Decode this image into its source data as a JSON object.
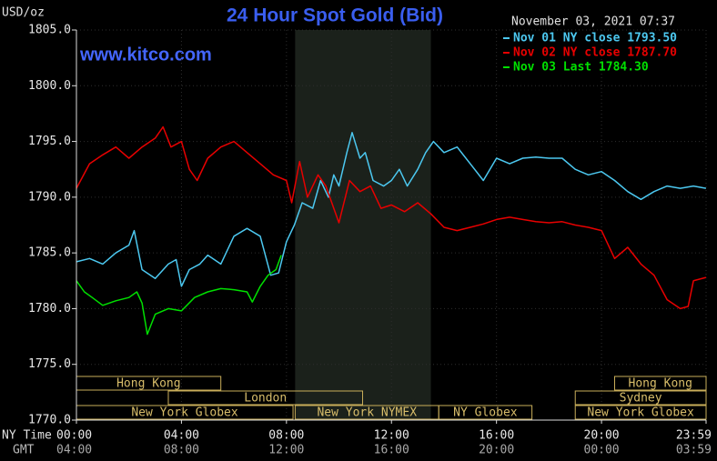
{
  "chart_data": {
    "type": "line",
    "title": "24 Hour Spot Gold (Bid)",
    "unit_label": "USD/oz",
    "site": "www.kitco.com",
    "timestamp": "November 03, 2021 07:37",
    "x_axis_label": "NY Time",
    "x2_axis_label": "GMT",
    "xlim": [
      0,
      23.983
    ],
    "xticks": [
      {
        "value": 0,
        "label": "00:00"
      },
      {
        "value": 4,
        "label": "04:00"
      },
      {
        "value": 8,
        "label": "08:00"
      },
      {
        "value": 12,
        "label": "12:00"
      },
      {
        "value": 16,
        "label": "16:00"
      },
      {
        "value": 20,
        "label": "20:00"
      },
      {
        "value": 23.983,
        "label": "23:59"
      }
    ],
    "gmt_tick_labels": [
      "04:00",
      "08:00",
      "12:00",
      "16:00",
      "20:00",
      "00:00",
      "03:59"
    ],
    "ylim": [
      1770,
      1805
    ],
    "yticks": [
      {
        "value": 1770,
        "label": "1770.0"
      },
      {
        "value": 1775,
        "label": "1775.0"
      },
      {
        "value": 1780,
        "label": "1780.0"
      },
      {
        "value": 1785,
        "label": "1785.0"
      },
      {
        "value": 1790,
        "label": "1790.0"
      },
      {
        "value": 1795,
        "label": "1795.0"
      },
      {
        "value": 1800,
        "label": "1800.0"
      },
      {
        "value": 1805,
        "label": "1805.0"
      }
    ],
    "grid": true,
    "highlight": {
      "start": 8.33,
      "end": 13.5,
      "color": "#1b211b"
    },
    "sessions": [
      {
        "name": "Hong Kong",
        "start": 0,
        "end": 5.5,
        "row": 0
      },
      {
        "name": "Hong Kong",
        "start": 20.5,
        "end": 23.983,
        "row": 0
      },
      {
        "name": "London",
        "start": 3.5,
        "end": 10.9,
        "row": 1
      },
      {
        "name": "Sydney",
        "start": 19,
        "end": 23.983,
        "row": 1
      },
      {
        "name": "New York Globex",
        "start": 0,
        "end": 8.25,
        "row": 2
      },
      {
        "name": "New York NYMEX",
        "start": 8.33,
        "end": 13.8,
        "row": 2
      },
      {
        "name": "NY Globex",
        "start": 13.8,
        "end": 17.35,
        "row": 2
      },
      {
        "name": "New York Globex",
        "start": 19,
        "end": 23.983,
        "row": 2
      }
    ],
    "series": [
      {
        "name": "Nov 01 NY close 1793.50",
        "color": "#4cc8f0",
        "x": [
          0,
          0.5,
          1,
          1.5,
          2,
          2.2,
          2.5,
          3,
          3.5,
          3.8,
          4,
          4.3,
          4.7,
          5,
          5.5,
          6,
          6.5,
          7,
          7.4,
          7.7,
          8,
          8.3,
          8.6,
          9,
          9.3,
          9.6,
          9.8,
          10,
          10.3,
          10.5,
          10.8,
          11,
          11.3,
          11.7,
          12,
          12.3,
          12.6,
          13,
          13.3,
          13.6,
          14,
          14.5,
          15,
          15.5,
          16,
          16.5,
          17,
          17.5,
          18,
          18.5,
          19,
          19.5,
          20,
          20.5,
          21,
          21.5,
          22,
          22.5,
          23,
          23.5,
          23.98
        ],
        "values": [
          1784.2,
          1784.5,
          1784.0,
          1785.0,
          1785.7,
          1787.0,
          1783.5,
          1782.7,
          1784.0,
          1784.4,
          1782.0,
          1783.5,
          1784.0,
          1784.8,
          1784.0,
          1786.5,
          1787.2,
          1786.5,
          1783.0,
          1783.2,
          1786.0,
          1787.5,
          1789.5,
          1789.0,
          1791.5,
          1790.0,
          1792.0,
          1791.0,
          1794.0,
          1795.8,
          1793.5,
          1794.0,
          1791.5,
          1791.0,
          1791.5,
          1792.5,
          1791.0,
          1792.5,
          1794.0,
          1795.0,
          1794.0,
          1794.5,
          1793.0,
          1791.5,
          1793.5,
          1793.0,
          1793.5,
          1793.6,
          1793.5,
          1793.5,
          1792.5,
          1792.0,
          1792.3,
          1791.5,
          1790.5,
          1789.8,
          1790.5,
          1791.0,
          1790.8,
          1791.0,
          1790.8
        ]
      },
      {
        "name": "Nov 02 NY close 1787.70",
        "color": "#e80000",
        "x": [
          0,
          0.5,
          1,
          1.5,
          2,
          2.5,
          3,
          3.3,
          3.6,
          4,
          4.3,
          4.6,
          5,
          5.5,
          6,
          6.5,
          7,
          7.5,
          8,
          8.2,
          8.5,
          8.8,
          9.2,
          9.5,
          10,
          10.4,
          10.8,
          11.2,
          11.6,
          12,
          12.5,
          13,
          13.5,
          14,
          14.5,
          15,
          15.5,
          16,
          16.5,
          17,
          17.5,
          18,
          18.5,
          19,
          19.5,
          20,
          20.5,
          21,
          21.5,
          22,
          22.5,
          23,
          23.3,
          23.5,
          23.98
        ],
        "values": [
          1790.8,
          1793.0,
          1793.8,
          1794.5,
          1793.5,
          1794.5,
          1795.3,
          1796.3,
          1794.5,
          1795.0,
          1792.5,
          1791.5,
          1793.5,
          1794.5,
          1795.0,
          1794.0,
          1793.0,
          1792.0,
          1791.5,
          1789.5,
          1793.2,
          1790.0,
          1792.0,
          1791.0,
          1787.7,
          1791.5,
          1790.5,
          1791.0,
          1789.0,
          1789.3,
          1788.7,
          1789.5,
          1788.5,
          1787.3,
          1787.0,
          1787.3,
          1787.6,
          1788.0,
          1788.2,
          1788.0,
          1787.8,
          1787.7,
          1787.8,
          1787.5,
          1787.3,
          1787.0,
          1784.5,
          1785.5,
          1784.0,
          1783.0,
          1780.8,
          1780.0,
          1780.2,
          1782.5,
          1782.8
        ]
      },
      {
        "name": "Nov 03 Last 1784.30",
        "color": "#00e000",
        "x": [
          0,
          0.3,
          0.6,
          1,
          1.5,
          2,
          2.3,
          2.5,
          2.7,
          3,
          3.5,
          4,
          4.5,
          5,
          5.5,
          6,
          6.5,
          6.7,
          7,
          7.3,
          7.6,
          7.8
        ],
        "values": [
          1782.5,
          1781.5,
          1781.0,
          1780.3,
          1780.7,
          1781.0,
          1781.5,
          1780.5,
          1777.7,
          1779.5,
          1780.0,
          1779.8,
          1781.0,
          1781.5,
          1781.8,
          1781.7,
          1781.5,
          1780.6,
          1782.0,
          1783.0,
          1783.5,
          1784.8
        ]
      }
    ]
  }
}
